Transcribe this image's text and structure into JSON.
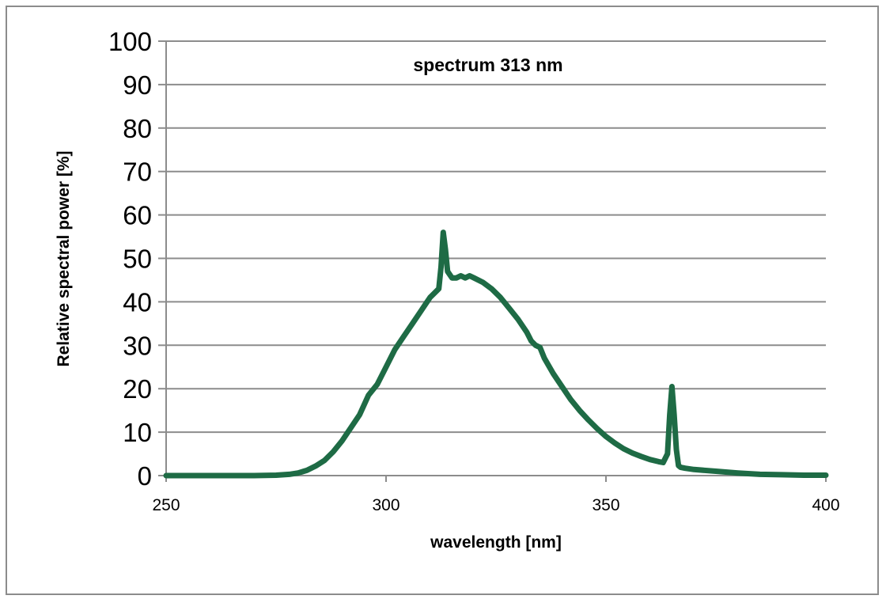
{
  "chart_data": {
    "type": "line",
    "title": "spectrum 313 nm",
    "xlabel": "wavelength [nm]",
    "ylabel": "Relative spectral power [%]",
    "xlim": [
      250,
      400
    ],
    "ylim": [
      0,
      100
    ],
    "x_ticks": [
      "250",
      "300",
      "350",
      "400"
    ],
    "y_ticks": [
      "0",
      "10",
      "20",
      "30",
      "40",
      "50",
      "60",
      "70",
      "80",
      "90",
      "100"
    ],
    "grid": "horizontal",
    "legend": "none",
    "line_color": "#1e6b45",
    "series": [
      {
        "x": [
          250,
          260,
          270,
          275,
          278,
          280,
          282,
          284,
          286,
          288,
          290,
          292,
          294,
          296,
          298,
          300,
          302,
          304,
          306,
          308,
          310,
          311,
          312,
          312.5,
          313,
          313.5,
          314,
          315,
          316,
          317,
          318,
          319,
          320,
          322,
          324,
          326,
          328,
          330,
          332,
          333,
          334,
          335,
          336,
          338,
          340,
          342,
          344,
          346,
          348,
          350,
          352,
          354,
          356,
          358,
          360,
          362,
          363,
          364,
          364.5,
          365,
          365.5,
          366,
          366.5,
          367,
          368,
          370,
          375,
          380,
          385,
          390,
          395,
          400
        ],
        "y": [
          0,
          0,
          0,
          0.1,
          0.3,
          0.6,
          1.2,
          2.2,
          3.5,
          5.5,
          8,
          11,
          14,
          18.5,
          21,
          25,
          29,
          32,
          35,
          38,
          41,
          42,
          43,
          48,
          56,
          52,
          47,
          45.5,
          45.5,
          46,
          45.5,
          46,
          45.5,
          44.5,
          43,
          41,
          38.5,
          36,
          33,
          31,
          30,
          29.5,
          27,
          23.5,
          20.5,
          17.5,
          15,
          12.8,
          10.8,
          9,
          7.5,
          6.2,
          5.2,
          4.4,
          3.7,
          3.2,
          3.0,
          5,
          14,
          20.5,
          14,
          6,
          2.3,
          1.9,
          1.7,
          1.4,
          1.0,
          0.6,
          0.3,
          0.2,
          0.1,
          0.1
        ]
      }
    ]
  }
}
